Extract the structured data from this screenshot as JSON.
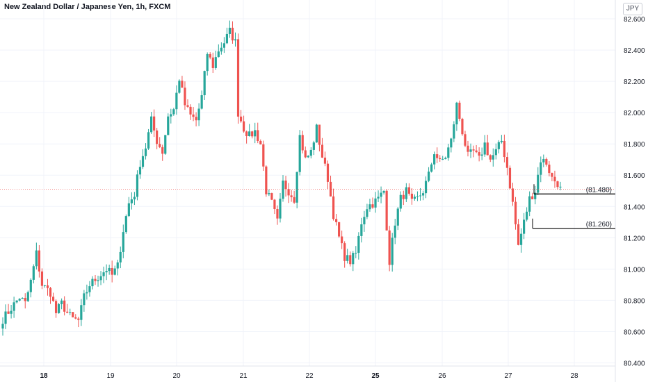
{
  "header": {
    "title": "New Zealand Dollar / Japanese Yen, 1h, FXCM",
    "currency": "JPY"
  },
  "colors": {
    "up": "#26a69a",
    "down": "#ef5350",
    "grid": "#f0f3fa",
    "price_line": "#ef5350",
    "level_line": "#000000"
  },
  "chart_data": {
    "type": "candlestick",
    "title": "New Zealand Dollar / Japanese Yen, 1h, FXCM",
    "ylim": [
      80.38,
      82.72
    ],
    "yticks": [
      "82.600",
      "82.400",
      "82.200",
      "82.000",
      "81.800",
      "81.600",
      "81.400",
      "81.200",
      "81.000",
      "80.800",
      "80.600",
      "80.400"
    ],
    "xticks": [
      "18",
      "19",
      "20",
      "21",
      "22",
      "25",
      "26",
      "27",
      "28"
    ],
    "bold_xticks": [
      "18",
      "25"
    ],
    "grid": true,
    "current_price": 81.51,
    "levels": [
      {
        "price": 81.48,
        "label": "(81.480)"
      },
      {
        "price": 81.26,
        "label": "(81.260)"
      }
    ],
    "trend_path": [
      [
        0,
        80.68
      ],
      [
        3,
        80.75
      ],
      [
        6,
        80.82
      ],
      [
        8,
        80.78
      ],
      [
        10,
        80.92
      ],
      [
        12,
        81.1
      ],
      [
        14,
        80.9
      ],
      [
        17,
        80.85
      ],
      [
        19,
        80.72
      ],
      [
        21,
        80.78
      ],
      [
        23,
        80.72
      ],
      [
        25,
        80.68
      ],
      [
        27,
        80.67
      ],
      [
        29,
        80.82
      ],
      [
        31,
        80.9
      ],
      [
        34,
        80.95
      ],
      [
        37,
        81.0
      ],
      [
        39,
        80.96
      ],
      [
        41,
        81.02
      ],
      [
        43,
        81.25
      ],
      [
        45,
        81.42
      ],
      [
        47,
        81.48
      ],
      [
        49,
        81.68
      ],
      [
        51,
        81.78
      ],
      [
        53,
        81.95
      ],
      [
        55,
        81.82
      ],
      [
        57,
        81.75
      ],
      [
        59,
        81.98
      ],
      [
        61,
        82.02
      ],
      [
        63,
        82.22
      ],
      [
        65,
        82.05
      ],
      [
        67,
        81.98
      ],
      [
        69,
        81.95
      ],
      [
        71,
        82.1
      ],
      [
        73,
        82.38
      ],
      [
        75,
        82.3
      ],
      [
        77,
        82.4
      ],
      [
        79,
        82.45
      ],
      [
        81,
        82.52
      ],
      [
        83,
        82.45
      ],
      [
        84,
        82.0
      ],
      [
        86,
        81.9
      ],
      [
        88,
        81.85
      ],
      [
        90,
        81.88
      ],
      [
        92,
        81.8
      ],
      [
        94,
        81.5
      ],
      [
        96,
        81.42
      ],
      [
        98,
        81.3
      ],
      [
        100,
        81.55
      ],
      [
        102,
        81.5
      ],
      [
        104,
        81.45
      ],
      [
        106,
        81.85
      ],
      [
        108,
        81.7
      ],
      [
        110,
        81.75
      ],
      [
        112,
        81.9
      ],
      [
        114,
        81.72
      ],
      [
        116,
        81.58
      ],
      [
        118,
        81.35
      ],
      [
        120,
        81.2
      ],
      [
        122,
        81.08
      ],
      [
        124,
        81.05
      ],
      [
        126,
        81.1
      ],
      [
        128,
        81.3
      ],
      [
        130,
        81.4
      ],
      [
        132,
        81.42
      ],
      [
        134,
        81.45
      ],
      [
        136,
        81.5
      ],
      [
        138,
        81.05
      ],
      [
        140,
        81.3
      ],
      [
        142,
        81.45
      ],
      [
        144,
        81.5
      ],
      [
        146,
        81.42
      ],
      [
        148,
        81.45
      ],
      [
        150,
        81.5
      ],
      [
        152,
        81.6
      ],
      [
        154,
        81.75
      ],
      [
        156,
        81.68
      ],
      [
        158,
        81.72
      ],
      [
        160,
        81.82
      ],
      [
        162,
        82.05
      ],
      [
        164,
        81.88
      ],
      [
        166,
        81.72
      ],
      [
        168,
        81.75
      ],
      [
        170,
        81.7
      ],
      [
        172,
        81.8
      ],
      [
        174,
        81.7
      ],
      [
        176,
        81.75
      ],
      [
        178,
        81.82
      ],
      [
        180,
        81.65
      ],
      [
        182,
        81.42
      ],
      [
        184,
        81.15
      ],
      [
        186,
        81.3
      ],
      [
        188,
        81.45
      ],
      [
        190,
        81.5
      ],
      [
        192,
        81.7
      ],
      [
        194,
        81.68
      ],
      [
        196,
        81.58
      ],
      [
        198,
        81.55
      ],
      [
        199,
        81.51
      ]
    ],
    "candle_count": 200
  }
}
